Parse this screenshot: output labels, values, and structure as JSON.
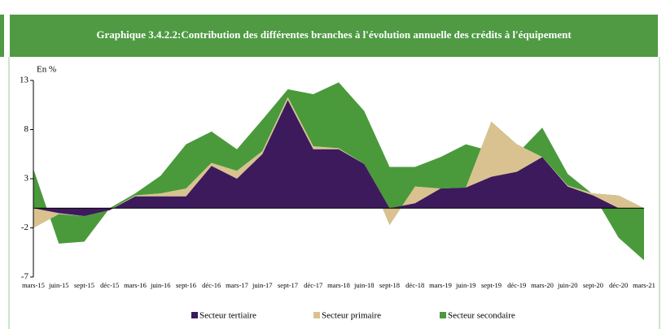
{
  "chart_data": {
    "type": "stacked_area",
    "title": "Graphique 3.4.2.2:Contribution des différentes branches à l'évolution  annuelle des crédits à l'équipement",
    "y_label": "En %",
    "categories": [
      "mars-15",
      "juin-15",
      "sept-15",
      "déc-15",
      "mars-16",
      "juin-16",
      "sept-16",
      "déc-16",
      "mars-17",
      "juin-17",
      "sept-17",
      "déc-17",
      "mars-18",
      "juin-18",
      "sept-18",
      "déc-18",
      "mars-19",
      "juin-19",
      "sept-19",
      "déc-19",
      "mars-20",
      "juin-20",
      "sept-20",
      "déc-20",
      "mars-21"
    ],
    "series": [
      {
        "name": "Secteur tertiaire",
        "color": "#3d1a5c",
        "values": [
          0,
          -0.5,
          -0.8,
          -0.2,
          1.2,
          1.2,
          1.2,
          4.3,
          3.0,
          5.5,
          11.0,
          6.0,
          6.0,
          4.5,
          0,
          0.5,
          2.0,
          2.1,
          3.2,
          3.7,
          5.2,
          2.2,
          1.3,
          0,
          0
        ]
      },
      {
        "name": "Secteur primaire",
        "color": "#d9c28f",
        "values": [
          -2.0,
          -0.1,
          0,
          0,
          0.1,
          0.3,
          0.8,
          0.3,
          0.8,
          0.3,
          0.3,
          0.3,
          0.1,
          0,
          -1.7,
          1.7,
          0,
          0,
          5.6,
          2.8,
          0,
          0.1,
          0.2,
          1.3,
          0
        ]
      },
      {
        "name": "Secteur secondaire",
        "color": "#4a9a3c",
        "values": [
          6.0,
          -3.0,
          -2.6,
          0.2,
          0.2,
          1.8,
          4.5,
          3.2,
          2.2,
          3.2,
          0.8,
          5.3,
          6.7,
          5.4,
          5.9,
          2.0,
          3.2,
          4.4,
          -3.0,
          -1.0,
          3.0,
          1.2,
          -0.1,
          -4.3,
          -5.3
        ]
      }
    ],
    "ylim": [
      -7,
      13
    ],
    "yticks": [
      -7,
      -2,
      3,
      8,
      13
    ]
  }
}
